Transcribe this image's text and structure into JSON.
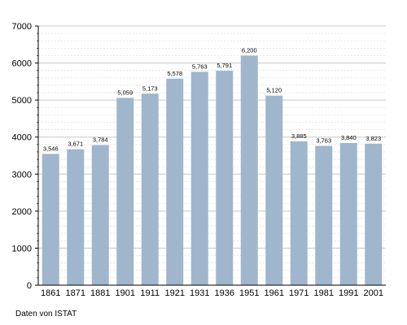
{
  "chart_data": {
    "type": "bar",
    "title": "",
    "xlabel": "",
    "ylabel": "",
    "categories": [
      "1861",
      "1871",
      "1881",
      "1901",
      "1911",
      "1921",
      "1931",
      "1936",
      "1951",
      "1961",
      "1971",
      "1981",
      "1991",
      "2001"
    ],
    "values": [
      3546,
      3671,
      3784,
      5059,
      5173,
      5578,
      5763,
      5791,
      6200,
      5120,
      3885,
      3763,
      3840,
      3823
    ],
    "data_labels": [
      "3,546",
      "3,671",
      "3,784",
      "5,059",
      "5,173",
      "5,578",
      "5,763",
      "5,791",
      "6,200",
      "5,120",
      "3,885",
      "3,763",
      "3,840",
      "3,823"
    ],
    "ylim": [
      0,
      7000
    ],
    "y_ticks": [
      0,
      1000,
      2000,
      3000,
      4000,
      5000,
      6000,
      7000
    ],
    "y_tick_labels": [
      "0",
      "1000",
      "2000",
      "3000",
      "4000",
      "5000",
      "6000",
      "7000"
    ],
    "grid": true,
    "bar_color": "#9fb6cd",
    "source_note": "Daten von ISTAT"
  }
}
